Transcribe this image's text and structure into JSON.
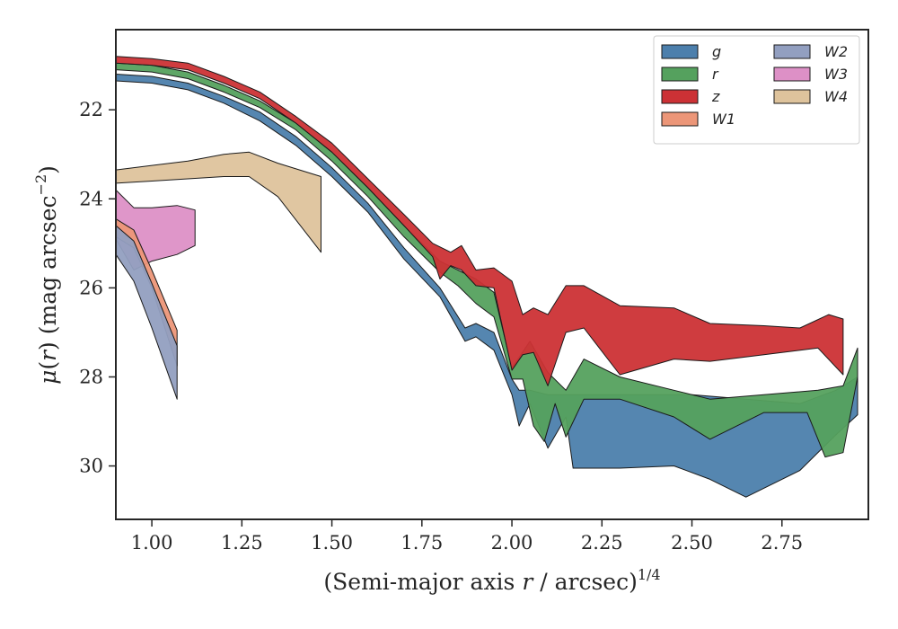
{
  "chart_data": {
    "type": "area",
    "title": "",
    "xlabel": "(Semi-major axis r / arcsec)^1/4",
    "xlabel_parts": {
      "before": "(Semi-major axis ",
      "var": "r",
      "after": " / arcsec)",
      "sup": "1/4"
    },
    "ylabel": "μ(r) (mag arcsec^-2)",
    "ylabel_parts": {
      "mu": "μ",
      "open": "(",
      "var": "r",
      "close": ") (mag arcsec",
      "sup": "−2",
      "end": ")"
    },
    "xlim": [
      0.9,
      2.99
    ],
    "ylim": [
      31.2,
      20.2
    ],
    "y_inverted": true,
    "grid": false,
    "legend_position": "top-right",
    "legend_columns": 2,
    "xticks": [
      "1.00",
      "1.25",
      "1.50",
      "1.75",
      "2.00",
      "2.25",
      "2.50",
      "2.75"
    ],
    "xtick_values": [
      1.0,
      1.25,
      1.5,
      1.75,
      2.0,
      2.25,
      2.5,
      2.75
    ],
    "yticks": [
      "22",
      "24",
      "26",
      "28",
      "30"
    ],
    "ytick_values": [
      22,
      24,
      26,
      28,
      30
    ],
    "colors": {
      "g": "#4c7fac",
      "r": "#55a15e",
      "z": "#cc3135",
      "W1": "#ec9678",
      "W2": "#929fc0",
      "W3": "#dd90c6",
      "W4": "#dec39c"
    },
    "series": [
      {
        "name": "g",
        "upper": [
          [
            0.9,
            21.2
          ],
          [
            1.0,
            21.25
          ],
          [
            1.1,
            21.4
          ],
          [
            1.2,
            21.7
          ],
          [
            1.3,
            22.05
          ],
          [
            1.4,
            22.6
          ],
          [
            1.5,
            23.3
          ],
          [
            1.6,
            24.1
          ],
          [
            1.7,
            25.1
          ],
          [
            1.8,
            26.0
          ],
          [
            1.87,
            26.9
          ],
          [
            1.9,
            26.8
          ],
          [
            1.95,
            27.0
          ],
          [
            2.0,
            28.05
          ],
          [
            2.02,
            28.3
          ],
          [
            2.05,
            28.3
          ],
          [
            2.1,
            28.4
          ],
          [
            2.2,
            28.4
          ],
          [
            2.35,
            28.4
          ],
          [
            2.5,
            28.4
          ],
          [
            2.65,
            28.5
          ],
          [
            2.8,
            28.6
          ],
          [
            2.9,
            28.3
          ],
          [
            2.96,
            28.0
          ]
        ],
        "lower": [
          [
            0.9,
            21.35
          ],
          [
            1.0,
            21.4
          ],
          [
            1.1,
            21.55
          ],
          [
            1.2,
            21.85
          ],
          [
            1.3,
            22.25
          ],
          [
            1.4,
            22.8
          ],
          [
            1.5,
            23.5
          ],
          [
            1.6,
            24.3
          ],
          [
            1.7,
            25.35
          ],
          [
            1.8,
            26.2
          ],
          [
            1.87,
            27.2
          ],
          [
            1.9,
            27.1
          ],
          [
            1.95,
            27.4
          ],
          [
            2.0,
            28.4
          ],
          [
            2.02,
            29.1
          ],
          [
            2.05,
            28.6
          ],
          [
            2.1,
            29.6
          ],
          [
            2.15,
            28.9
          ],
          [
            2.17,
            30.05
          ],
          [
            2.3,
            30.05
          ],
          [
            2.45,
            30.0
          ],
          [
            2.55,
            30.3
          ],
          [
            2.65,
            30.7
          ],
          [
            2.8,
            30.1
          ],
          [
            2.9,
            29.3
          ],
          [
            2.96,
            28.85
          ]
        ]
      },
      {
        "name": "r",
        "upper": [
          [
            0.9,
            20.95
          ],
          [
            1.0,
            21.0
          ],
          [
            1.1,
            21.15
          ],
          [
            1.2,
            21.45
          ],
          [
            1.3,
            21.8
          ],
          [
            1.4,
            22.3
          ],
          [
            1.5,
            22.95
          ],
          [
            1.6,
            23.75
          ],
          [
            1.7,
            24.6
          ],
          [
            1.8,
            25.4
          ],
          [
            1.85,
            25.6
          ],
          [
            1.9,
            25.8
          ],
          [
            1.95,
            26.1
          ],
          [
            2.0,
            27.8
          ],
          [
            2.05,
            27.2
          ],
          [
            2.1,
            27.9
          ],
          [
            2.15,
            28.3
          ],
          [
            2.2,
            27.6
          ],
          [
            2.3,
            28.0
          ],
          [
            2.45,
            28.3
          ],
          [
            2.55,
            28.5
          ],
          [
            2.7,
            28.4
          ],
          [
            2.85,
            28.3
          ],
          [
            2.92,
            28.2
          ],
          [
            2.96,
            27.35
          ]
        ],
        "lower": [
          [
            0.9,
            21.1
          ],
          [
            1.0,
            21.15
          ],
          [
            1.1,
            21.3
          ],
          [
            1.2,
            21.6
          ],
          [
            1.3,
            21.95
          ],
          [
            1.4,
            22.45
          ],
          [
            1.5,
            23.15
          ],
          [
            1.6,
            23.95
          ],
          [
            1.7,
            24.85
          ],
          [
            1.8,
            25.65
          ],
          [
            1.85,
            25.95
          ],
          [
            1.9,
            26.35
          ],
          [
            1.95,
            26.65
          ],
          [
            2.0,
            28.05
          ],
          [
            2.03,
            28.05
          ],
          [
            2.06,
            29.1
          ],
          [
            2.09,
            29.45
          ],
          [
            2.12,
            28.6
          ],
          [
            2.15,
            29.35
          ],
          [
            2.2,
            28.5
          ],
          [
            2.3,
            28.5
          ],
          [
            2.45,
            28.9
          ],
          [
            2.55,
            29.4
          ],
          [
            2.7,
            28.8
          ],
          [
            2.82,
            28.8
          ],
          [
            2.87,
            29.8
          ],
          [
            2.92,
            29.7
          ],
          [
            2.96,
            28.0
          ]
        ]
      },
      {
        "name": "z",
        "upper": [
          [
            0.9,
            20.8
          ],
          [
            1.0,
            20.85
          ],
          [
            1.1,
            20.95
          ],
          [
            1.2,
            21.25
          ],
          [
            1.3,
            21.6
          ],
          [
            1.4,
            22.15
          ],
          [
            1.5,
            22.75
          ],
          [
            1.6,
            23.55
          ],
          [
            1.7,
            24.35
          ],
          [
            1.78,
            25.0
          ],
          [
            1.83,
            25.2
          ],
          [
            1.86,
            25.05
          ],
          [
            1.9,
            25.6
          ],
          [
            1.95,
            25.55
          ],
          [
            2.0,
            25.85
          ],
          [
            2.03,
            26.6
          ],
          [
            2.06,
            26.45
          ],
          [
            2.1,
            26.6
          ],
          [
            2.15,
            25.95
          ],
          [
            2.2,
            25.95
          ],
          [
            2.3,
            26.4
          ],
          [
            2.45,
            26.45
          ],
          [
            2.55,
            26.8
          ],
          [
            2.7,
            26.85
          ],
          [
            2.8,
            26.9
          ],
          [
            2.88,
            26.6
          ],
          [
            2.92,
            26.7
          ]
        ],
        "lower": [
          [
            0.9,
            20.95
          ],
          [
            1.0,
            21.0
          ],
          [
            1.1,
            21.1
          ],
          [
            1.2,
            21.4
          ],
          [
            1.3,
            21.75
          ],
          [
            1.4,
            22.3
          ],
          [
            1.5,
            22.95
          ],
          [
            1.6,
            23.75
          ],
          [
            1.7,
            24.6
          ],
          [
            1.78,
            25.3
          ],
          [
            1.8,
            25.8
          ],
          [
            1.83,
            25.5
          ],
          [
            1.86,
            25.6
          ],
          [
            1.9,
            25.95
          ],
          [
            1.95,
            26.0
          ],
          [
            2.0,
            27.85
          ],
          [
            2.03,
            27.5
          ],
          [
            2.06,
            27.45
          ],
          [
            2.1,
            28.2
          ],
          [
            2.15,
            27.0
          ],
          [
            2.2,
            26.9
          ],
          [
            2.3,
            27.95
          ],
          [
            2.45,
            27.6
          ],
          [
            2.55,
            27.65
          ],
          [
            2.7,
            27.5
          ],
          [
            2.85,
            27.35
          ],
          [
            2.92,
            27.95
          ]
        ]
      },
      {
        "name": "W1",
        "upper": [
          [
            0.9,
            24.45
          ],
          [
            0.95,
            24.7
          ],
          [
            1.0,
            25.6
          ],
          [
            1.07,
            26.95
          ]
        ],
        "lower": [
          [
            0.9,
            24.85
          ],
          [
            0.95,
            25.1
          ],
          [
            1.0,
            26.0
          ],
          [
            1.07,
            27.75
          ]
        ]
      },
      {
        "name": "W2",
        "upper": [
          [
            0.9,
            24.6
          ],
          [
            0.95,
            24.95
          ],
          [
            1.0,
            25.9
          ],
          [
            1.07,
            27.3
          ]
        ],
        "lower": [
          [
            0.9,
            25.25
          ],
          [
            0.95,
            25.85
          ],
          [
            1.0,
            26.9
          ],
          [
            1.07,
            28.5
          ]
        ]
      },
      {
        "name": "W3",
        "upper": [
          [
            0.9,
            23.8
          ],
          [
            0.95,
            24.2
          ],
          [
            1.0,
            24.2
          ],
          [
            1.07,
            24.15
          ],
          [
            1.12,
            24.25
          ]
        ],
        "lower": [
          [
            0.9,
            24.9
          ],
          [
            0.95,
            25.6
          ],
          [
            1.0,
            25.4
          ],
          [
            1.07,
            25.25
          ],
          [
            1.12,
            25.05
          ]
        ]
      },
      {
        "name": "W4",
        "upper": [
          [
            0.9,
            23.35
          ],
          [
            1.0,
            23.25
          ],
          [
            1.1,
            23.15
          ],
          [
            1.2,
            23.0
          ],
          [
            1.27,
            22.95
          ],
          [
            1.35,
            23.2
          ],
          [
            1.47,
            23.5
          ]
        ],
        "lower": [
          [
            0.9,
            23.65
          ],
          [
            1.0,
            23.6
          ],
          [
            1.1,
            23.55
          ],
          [
            1.2,
            23.5
          ],
          [
            1.27,
            23.5
          ],
          [
            1.35,
            23.95
          ],
          [
            1.47,
            25.2
          ]
        ]
      }
    ]
  }
}
